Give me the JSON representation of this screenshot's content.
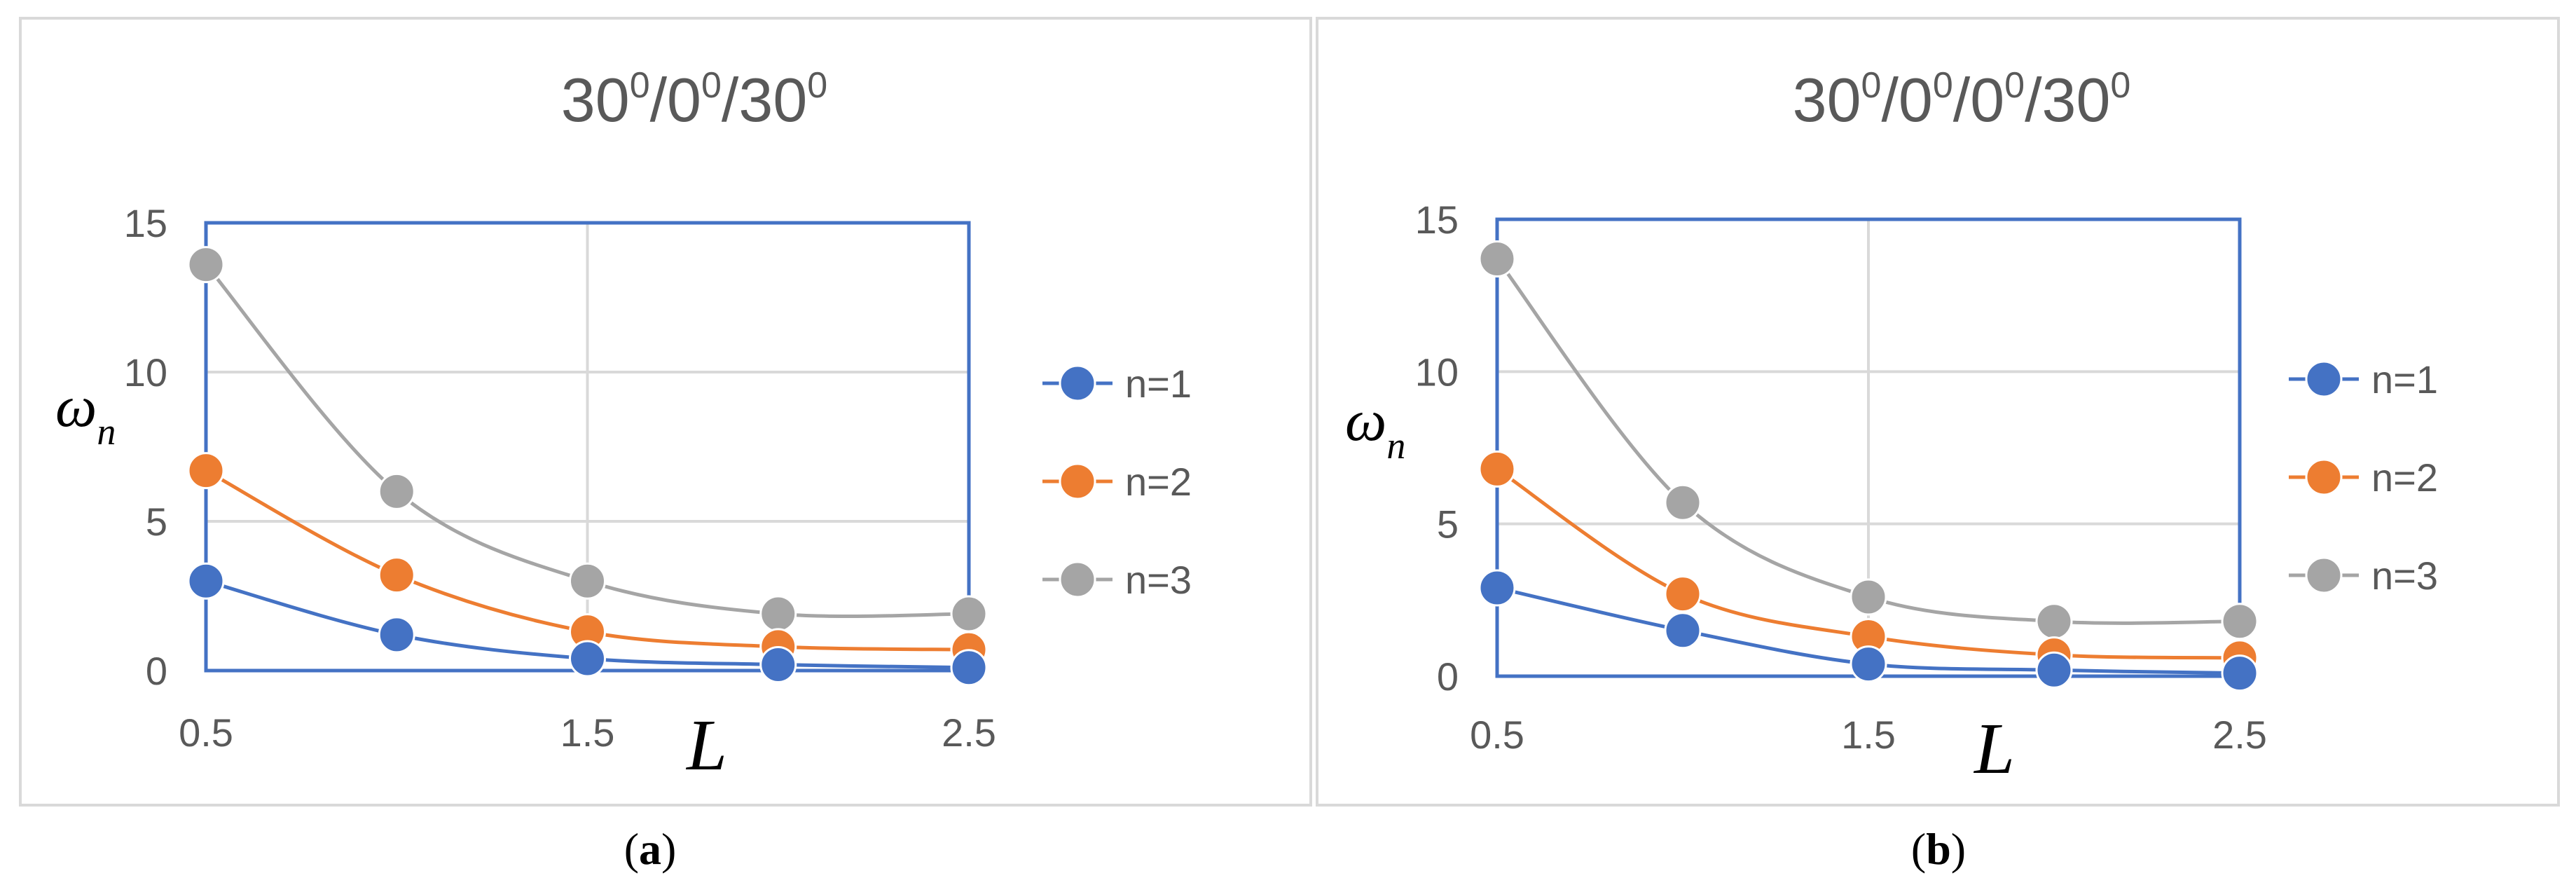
{
  "chart_data": [
    {
      "type": "line",
      "title_parts": [
        "30",
        "0",
        "/0",
        "0",
        "/30",
        "0"
      ],
      "xlabel": "L",
      "ylabel": "ω",
      "ylabel_sub": "n",
      "xlim": [
        0.5,
        2.5
      ],
      "ylim": [
        0,
        15
      ],
      "x_ticks": [
        "0.5",
        "1.5",
        "2.5"
      ],
      "y_ticks": [
        "0",
        "5",
        "10",
        "15"
      ],
      "grid": true,
      "smooth": true,
      "legend_position": "right",
      "x": [
        0.5,
        1.0,
        1.5,
        2.0,
        2.5
      ],
      "series": [
        {
          "name": "n=1",
          "color": "#4472C4",
          "values": [
            3.0,
            1.2,
            0.4,
            0.2,
            0.1
          ]
        },
        {
          "name": "n=2",
          "color": "#ED7D31",
          "values": [
            6.7,
            3.2,
            1.3,
            0.8,
            0.7
          ]
        },
        {
          "name": "n=3",
          "color": "#A5A5A5",
          "values": [
            13.6,
            6.0,
            3.0,
            1.9,
            1.9
          ]
        }
      ],
      "caption": "a"
    },
    {
      "type": "line",
      "title_parts": [
        "30",
        "0",
        "/0",
        "0",
        "/0",
        "0",
        "/30",
        "0"
      ],
      "xlabel": "L",
      "ylabel": "ω",
      "ylabel_sub": "n",
      "xlim": [
        0.5,
        2.5
      ],
      "ylim": [
        0,
        15
      ],
      "x_ticks": [
        "0.5",
        "1.5",
        "2.5"
      ],
      "y_ticks": [
        "0",
        "5",
        "10",
        "15"
      ],
      "grid": true,
      "smooth": true,
      "legend_position": "right",
      "x": [
        0.5,
        1.0,
        1.5,
        2.0,
        2.5
      ],
      "series": [
        {
          "name": "n=1",
          "color": "#4472C4",
          "values": [
            2.9,
            1.5,
            0.4,
            0.2,
            0.1
          ]
        },
        {
          "name": "n=2",
          "color": "#ED7D31",
          "values": [
            6.8,
            2.7,
            1.3,
            0.7,
            0.6
          ]
        },
        {
          "name": "n=3",
          "color": "#A5A5A5",
          "values": [
            13.7,
            5.7,
            2.6,
            1.8,
            1.8
          ]
        }
      ],
      "caption": "b"
    }
  ],
  "frame_color": "#4472C4",
  "grid_color": "#d9d9d9"
}
